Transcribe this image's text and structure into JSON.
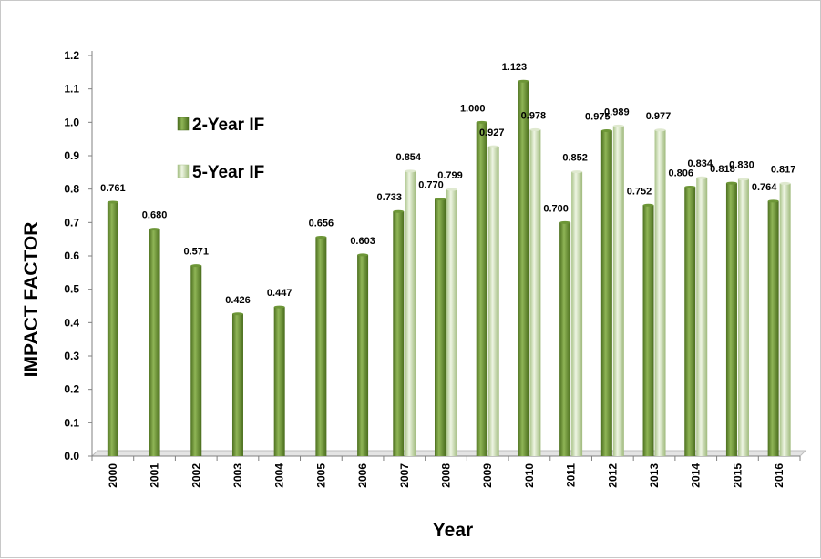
{
  "chart_data": {
    "type": "bar",
    "title": "",
    "xlabel": "Year",
    "ylabel": "IMPACT FACTOR",
    "ylim": [
      0,
      1.2
    ],
    "yticks": [
      "0.0",
      "0.1",
      "0.2",
      "0.3",
      "0.4",
      "0.5",
      "0.6",
      "0.7",
      "0.8",
      "0.9",
      "1.0",
      "1.1",
      "1.2"
    ],
    "categories": [
      "2000",
      "2001",
      "2002",
      "2003",
      "2004",
      "2005",
      "2006",
      "2007",
      "2008",
      "2009",
      "2010",
      "2011",
      "2012",
      "2013",
      "2014",
      "2015",
      "2016"
    ],
    "legend_position": "upper-left",
    "grid": false,
    "series": [
      {
        "name": "2-Year IF",
        "color": "#6f9a3a",
        "values": [
          0.761,
          0.68,
          0.571,
          0.426,
          0.447,
          0.656,
          0.603,
          0.733,
          0.77,
          1.0,
          1.123,
          0.7,
          0.975,
          0.752,
          0.806,
          0.818,
          0.764
        ],
        "labels": [
          "0.761",
          "0.680",
          "0.571",
          "0.426",
          "0.447",
          "0.656",
          "0.603",
          "0.733",
          "0.770",
          "1.000",
          "1.123",
          "0.700",
          "0.975",
          "0.752",
          "0.806",
          "0.818",
          "0.764"
        ]
      },
      {
        "name": "5-Year IF",
        "color": "#cfdfb8",
        "values": [
          null,
          null,
          null,
          null,
          null,
          null,
          null,
          0.854,
          0.799,
          0.927,
          0.978,
          0.852,
          0.989,
          0.977,
          0.834,
          0.83,
          0.817
        ],
        "labels": [
          null,
          null,
          null,
          null,
          null,
          null,
          null,
          "0.854",
          "0.799",
          "0.927",
          "0.978",
          "0.852",
          "0.989",
          "0.977",
          "0.834",
          "0.830",
          "0.817"
        ]
      }
    ]
  }
}
